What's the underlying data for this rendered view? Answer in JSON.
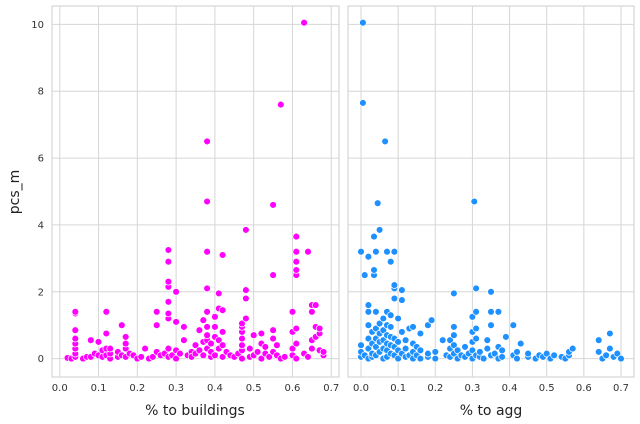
{
  "chart_data": [
    {
      "type": "scatter",
      "xlabel": "% to buildings",
      "ylabel": "pcs_m",
      "xlim": [
        -0.02,
        0.72
      ],
      "ylim": [
        -0.55,
        10.55
      ],
      "xticks": [
        "0.0",
        "0.1",
        "0.2",
        "0.3",
        "0.4",
        "0.5",
        "0.6",
        "0.7"
      ],
      "xtick_values": [
        0.0,
        0.1,
        0.2,
        0.3,
        0.4,
        0.5,
        0.6,
        0.7
      ],
      "yticks": [
        "0",
        "2",
        "4",
        "6",
        "8",
        "10"
      ],
      "ytick_values": [
        0,
        2,
        4,
        6,
        8,
        10
      ],
      "grid": true,
      "marker_color": "#ff00ff",
      "points": [
        [
          0.02,
          0.02
        ],
        [
          0.03,
          0.0
        ],
        [
          0.04,
          0.05
        ],
        [
          0.04,
          0.15
        ],
        [
          0.04,
          0.3
        ],
        [
          0.04,
          0.45
        ],
        [
          0.04,
          0.6
        ],
        [
          0.04,
          0.85
        ],
        [
          0.04,
          1.35
        ],
        [
          0.04,
          1.4
        ],
        [
          0.06,
          0.0
        ],
        [
          0.07,
          0.05
        ],
        [
          0.08,
          0.05
        ],
        [
          0.08,
          0.55
        ],
        [
          0.09,
          0.15
        ],
        [
          0.1,
          0.1
        ],
        [
          0.1,
          0.5
        ],
        [
          0.11,
          0.05
        ],
        [
          0.11,
          0.25
        ],
        [
          0.12,
          0.1
        ],
        [
          0.12,
          0.3
        ],
        [
          0.12,
          0.75
        ],
        [
          0.12,
          1.4
        ],
        [
          0.13,
          0.0
        ],
        [
          0.13,
          0.15
        ],
        [
          0.13,
          0.3
        ],
        [
          0.15,
          0.05
        ],
        [
          0.15,
          0.2
        ],
        [
          0.16,
          0.1
        ],
        [
          0.16,
          1.0
        ],
        [
          0.17,
          0.05
        ],
        [
          0.17,
          0.3
        ],
        [
          0.17,
          0.45
        ],
        [
          0.17,
          0.65
        ],
        [
          0.18,
          0.15
        ],
        [
          0.19,
          0.1
        ],
        [
          0.2,
          0.0
        ],
        [
          0.21,
          0.05
        ],
        [
          0.22,
          0.3
        ],
        [
          0.23,
          0.0
        ],
        [
          0.24,
          0.05
        ],
        [
          0.25,
          0.2
        ],
        [
          0.25,
          1.0
        ],
        [
          0.25,
          1.4
        ],
        [
          0.26,
          0.1
        ],
        [
          0.27,
          0.15
        ],
        [
          0.28,
          0.05
        ],
        [
          0.28,
          0.3
        ],
        [
          0.28,
          1.2
        ],
        [
          0.28,
          1.35
        ],
        [
          0.28,
          1.7
        ],
        [
          0.28,
          2.15
        ],
        [
          0.28,
          2.3
        ],
        [
          0.28,
          2.9
        ],
        [
          0.28,
          3.25
        ],
        [
          0.29,
          0.1
        ],
        [
          0.3,
          0.0
        ],
        [
          0.3,
          0.25
        ],
        [
          0.3,
          1.1
        ],
        [
          0.3,
          2.0
        ],
        [
          0.31,
          0.15
        ],
        [
          0.32,
          0.55
        ],
        [
          0.32,
          0.95
        ],
        [
          0.33,
          0.1
        ],
        [
          0.34,
          0.2
        ],
        [
          0.34,
          0.05
        ],
        [
          0.35,
          0.15
        ],
        [
          0.35,
          0.4
        ],
        [
          0.36,
          0.25
        ],
        [
          0.36,
          0.85
        ],
        [
          0.37,
          0.1
        ],
        [
          0.37,
          0.5
        ],
        [
          0.37,
          1.15
        ],
        [
          0.38,
          0.3
        ],
        [
          0.38,
          0.55
        ],
        [
          0.38,
          0.7
        ],
        [
          0.38,
          0.95
        ],
        [
          0.38,
          1.4
        ],
        [
          0.38,
          2.1
        ],
        [
          0.38,
          3.2
        ],
        [
          0.38,
          4.7
        ],
        [
          0.38,
          6.5
        ],
        [
          0.39,
          0.05
        ],
        [
          0.39,
          0.2
        ],
        [
          0.39,
          0.45
        ],
        [
          0.4,
          0.1
        ],
        [
          0.4,
          0.65
        ],
        [
          0.4,
          0.95
        ],
        [
          0.4,
          1.25
        ],
        [
          0.41,
          0.3
        ],
        [
          0.41,
          0.55
        ],
        [
          0.41,
          1.5
        ],
        [
          0.41,
          1.95
        ],
        [
          0.42,
          0.05
        ],
        [
          0.42,
          0.4
        ],
        [
          0.42,
          0.8
        ],
        [
          0.42,
          1.45
        ],
        [
          0.42,
          3.1
        ],
        [
          0.43,
          0.2
        ],
        [
          0.44,
          0.1
        ],
        [
          0.45,
          0.05
        ],
        [
          0.46,
          0.15
        ],
        [
          0.47,
          0.0
        ],
        [
          0.47,
          0.25
        ],
        [
          0.47,
          0.4
        ],
        [
          0.47,
          0.6
        ],
        [
          0.47,
          0.8
        ],
        [
          0.47,
          0.95
        ],
        [
          0.47,
          1.05
        ],
        [
          0.48,
          1.2
        ],
        [
          0.48,
          1.8
        ],
        [
          0.48,
          2.05
        ],
        [
          0.48,
          3.85
        ],
        [
          0.49,
          0.05
        ],
        [
          0.49,
          0.3
        ],
        [
          0.5,
          0.1
        ],
        [
          0.5,
          0.7
        ],
        [
          0.51,
          0.2
        ],
        [
          0.52,
          0.0
        ],
        [
          0.52,
          0.45
        ],
        [
          0.52,
          0.75
        ],
        [
          0.53,
          0.15
        ],
        [
          0.53,
          0.35
        ],
        [
          0.54,
          0.05
        ],
        [
          0.55,
          0.2
        ],
        [
          0.55,
          0.6
        ],
        [
          0.55,
          0.85
        ],
        [
          0.55,
          2.5
        ],
        [
          0.55,
          4.6
        ],
        [
          0.56,
          0.1
        ],
        [
          0.56,
          0.4
        ],
        [
          0.57,
          0.0
        ],
        [
          0.57,
          7.6
        ],
        [
          0.58,
          0.05
        ],
        [
          0.6,
          0.1
        ],
        [
          0.6,
          0.3
        ],
        [
          0.6,
          0.8
        ],
        [
          0.6,
          1.4
        ],
        [
          0.61,
          0.0
        ],
        [
          0.61,
          0.45
        ],
        [
          0.61,
          0.9
        ],
        [
          0.61,
          2.5
        ],
        [
          0.61,
          2.65
        ],
        [
          0.61,
          2.9
        ],
        [
          0.61,
          3.2
        ],
        [
          0.61,
          3.65
        ],
        [
          0.63,
          0.15
        ],
        [
          0.63,
          10.05
        ],
        [
          0.64,
          0.05
        ],
        [
          0.64,
          3.2
        ],
        [
          0.65,
          0.3
        ],
        [
          0.65,
          0.55
        ],
        [
          0.65,
          1.4
        ],
        [
          0.65,
          1.6
        ],
        [
          0.66,
          0.65
        ],
        [
          0.66,
          0.95
        ],
        [
          0.66,
          1.6
        ],
        [
          0.67,
          0.25
        ],
        [
          0.67,
          0.75
        ],
        [
          0.67,
          0.9
        ],
        [
          0.68,
          0.1
        ],
        [
          0.68,
          0.2
        ]
      ]
    },
    {
      "type": "scatter",
      "xlabel": "% to agg",
      "ylabel": "",
      "xlim": [
        -0.035,
        0.735
      ],
      "ylim": [
        -0.55,
        10.55
      ],
      "xticks": [
        "0.0",
        "0.1",
        "0.2",
        "0.3",
        "0.4",
        "0.5",
        "0.6",
        "0.7"
      ],
      "xtick_values": [
        0.0,
        0.1,
        0.2,
        0.3,
        0.4,
        0.5,
        0.6,
        0.7
      ],
      "grid": true,
      "marker_color": "#1e90ff",
      "points": [
        [
          0.0,
          0.05
        ],
        [
          0.0,
          0.2
        ],
        [
          0.0,
          0.4
        ],
        [
          0.0,
          3.2
        ],
        [
          0.005,
          7.65
        ],
        [
          0.005,
          10.05
        ],
        [
          0.01,
          0.1
        ],
        [
          0.01,
          2.5
        ],
        [
          0.02,
          0.0
        ],
        [
          0.02,
          0.3
        ],
        [
          0.02,
          0.6
        ],
        [
          0.02,
          1.0
        ],
        [
          0.02,
          1.4
        ],
        [
          0.02,
          1.6
        ],
        [
          0.02,
          3.05
        ],
        [
          0.03,
          0.05
        ],
        [
          0.03,
          0.15
        ],
        [
          0.03,
          0.45
        ],
        [
          0.03,
          0.8
        ],
        [
          0.035,
          2.5
        ],
        [
          0.035,
          2.65
        ],
        [
          0.035,
          3.65
        ],
        [
          0.04,
          0.1
        ],
        [
          0.04,
          0.35
        ],
        [
          0.04,
          0.6
        ],
        [
          0.04,
          0.9
        ],
        [
          0.04,
          1.4
        ],
        [
          0.04,
          3.2
        ],
        [
          0.045,
          4.65
        ],
        [
          0.05,
          0.2
        ],
        [
          0.05,
          0.5
        ],
        [
          0.05,
          0.75
        ],
        [
          0.05,
          1.05
        ],
        [
          0.05,
          3.85
        ],
        [
          0.06,
          0.0
        ],
        [
          0.06,
          0.3
        ],
        [
          0.06,
          0.55
        ],
        [
          0.06,
          0.85
        ],
        [
          0.06,
          1.2
        ],
        [
          0.065,
          6.5
        ],
        [
          0.07,
          0.05
        ],
        [
          0.07,
          0.25
        ],
        [
          0.07,
          0.45
        ],
        [
          0.07,
          0.7
        ],
        [
          0.07,
          1.0
        ],
        [
          0.07,
          1.4
        ],
        [
          0.07,
          3.2
        ],
        [
          0.08,
          0.15
        ],
        [
          0.08,
          0.4
        ],
        [
          0.08,
          0.65
        ],
        [
          0.08,
          0.95
        ],
        [
          0.08,
          1.3
        ],
        [
          0.08,
          2.9
        ],
        [
          0.09,
          0.1
        ],
        [
          0.09,
          0.35
        ],
        [
          0.09,
          0.6
        ],
        [
          0.09,
          1.8
        ],
        [
          0.09,
          2.1
        ],
        [
          0.09,
          2.2
        ],
        [
          0.09,
          3.2
        ],
        [
          0.1,
          0.0
        ],
        [
          0.1,
          0.25
        ],
        [
          0.1,
          0.5
        ],
        [
          0.1,
          1.2
        ],
        [
          0.11,
          0.15
        ],
        [
          0.11,
          0.8
        ],
        [
          0.11,
          1.75
        ],
        [
          0.11,
          2.05
        ],
        [
          0.12,
          0.05
        ],
        [
          0.12,
          0.3
        ],
        [
          0.12,
          0.55
        ],
        [
          0.13,
          0.1
        ],
        [
          0.13,
          0.9
        ],
        [
          0.14,
          0.0
        ],
        [
          0.14,
          0.2
        ],
        [
          0.14,
          0.45
        ],
        [
          0.14,
          0.95
        ],
        [
          0.15,
          0.1
        ],
        [
          0.15,
          0.35
        ],
        [
          0.16,
          0.0
        ],
        [
          0.16,
          0.25
        ],
        [
          0.16,
          0.75
        ],
        [
          0.18,
          0.05
        ],
        [
          0.18,
          0.15
        ],
        [
          0.18,
          1.0
        ],
        [
          0.19,
          1.15
        ],
        [
          0.2,
          0.0
        ],
        [
          0.2,
          0.2
        ],
        [
          0.22,
          0.55
        ],
        [
          0.23,
          0.1
        ],
        [
          0.24,
          0.05
        ],
        [
          0.24,
          0.3
        ],
        [
          0.24,
          0.55
        ],
        [
          0.25,
          0.15
        ],
        [
          0.25,
          0.4
        ],
        [
          0.25,
          0.7
        ],
        [
          0.25,
          0.95
        ],
        [
          0.25,
          1.95
        ],
        [
          0.26,
          0.0
        ],
        [
          0.26,
          0.25
        ],
        [
          0.27,
          0.1
        ],
        [
          0.28,
          0.05
        ],
        [
          0.28,
          0.35
        ],
        [
          0.29,
          0.15
        ],
        [
          0.3,
          0.0
        ],
        [
          0.3,
          0.25
        ],
        [
          0.3,
          0.5
        ],
        [
          0.3,
          0.8
        ],
        [
          0.3,
          1.25
        ],
        [
          0.305,
          4.7
        ],
        [
          0.31,
          0.1
        ],
        [
          0.31,
          0.6
        ],
        [
          0.31,
          0.9
        ],
        [
          0.31,
          1.4
        ],
        [
          0.31,
          2.1
        ],
        [
          0.32,
          0.05
        ],
        [
          0.32,
          0.2
        ],
        [
          0.33,
          0.0
        ],
        [
          0.34,
          0.3
        ],
        [
          0.34,
          0.55
        ],
        [
          0.35,
          0.1
        ],
        [
          0.35,
          1.0
        ],
        [
          0.35,
          1.4
        ],
        [
          0.35,
          2.0
        ],
        [
          0.36,
          0.15
        ],
        [
          0.37,
          0.0
        ],
        [
          0.37,
          0.35
        ],
        [
          0.37,
          1.4
        ],
        [
          0.38,
          0.05
        ],
        [
          0.38,
          0.25
        ],
        [
          0.39,
          0.65
        ],
        [
          0.41,
          0.1
        ],
        [
          0.41,
          1.0
        ],
        [
          0.42,
          0.0
        ],
        [
          0.42,
          0.2
        ],
        [
          0.43,
          0.45
        ],
        [
          0.45,
          0.05
        ],
        [
          0.45,
          0.15
        ],
        [
          0.47,
          0.0
        ],
        [
          0.48,
          0.1
        ],
        [
          0.49,
          0.05
        ],
        [
          0.5,
          0.15
        ],
        [
          0.51,
          0.0
        ],
        [
          0.52,
          0.1
        ],
        [
          0.54,
          0.05
        ],
        [
          0.55,
          0.0
        ],
        [
          0.56,
          0.1
        ],
        [
          0.56,
          0.2
        ],
        [
          0.57,
          0.3
        ],
        [
          0.64,
          0.2
        ],
        [
          0.64,
          0.55
        ],
        [
          0.65,
          0.0
        ],
        [
          0.66,
          0.1
        ],
        [
          0.67,
          0.3
        ],
        [
          0.67,
          0.75
        ],
        [
          0.68,
          0.05
        ],
        [
          0.69,
          0.15
        ],
        [
          0.7,
          0.0
        ]
      ]
    }
  ]
}
